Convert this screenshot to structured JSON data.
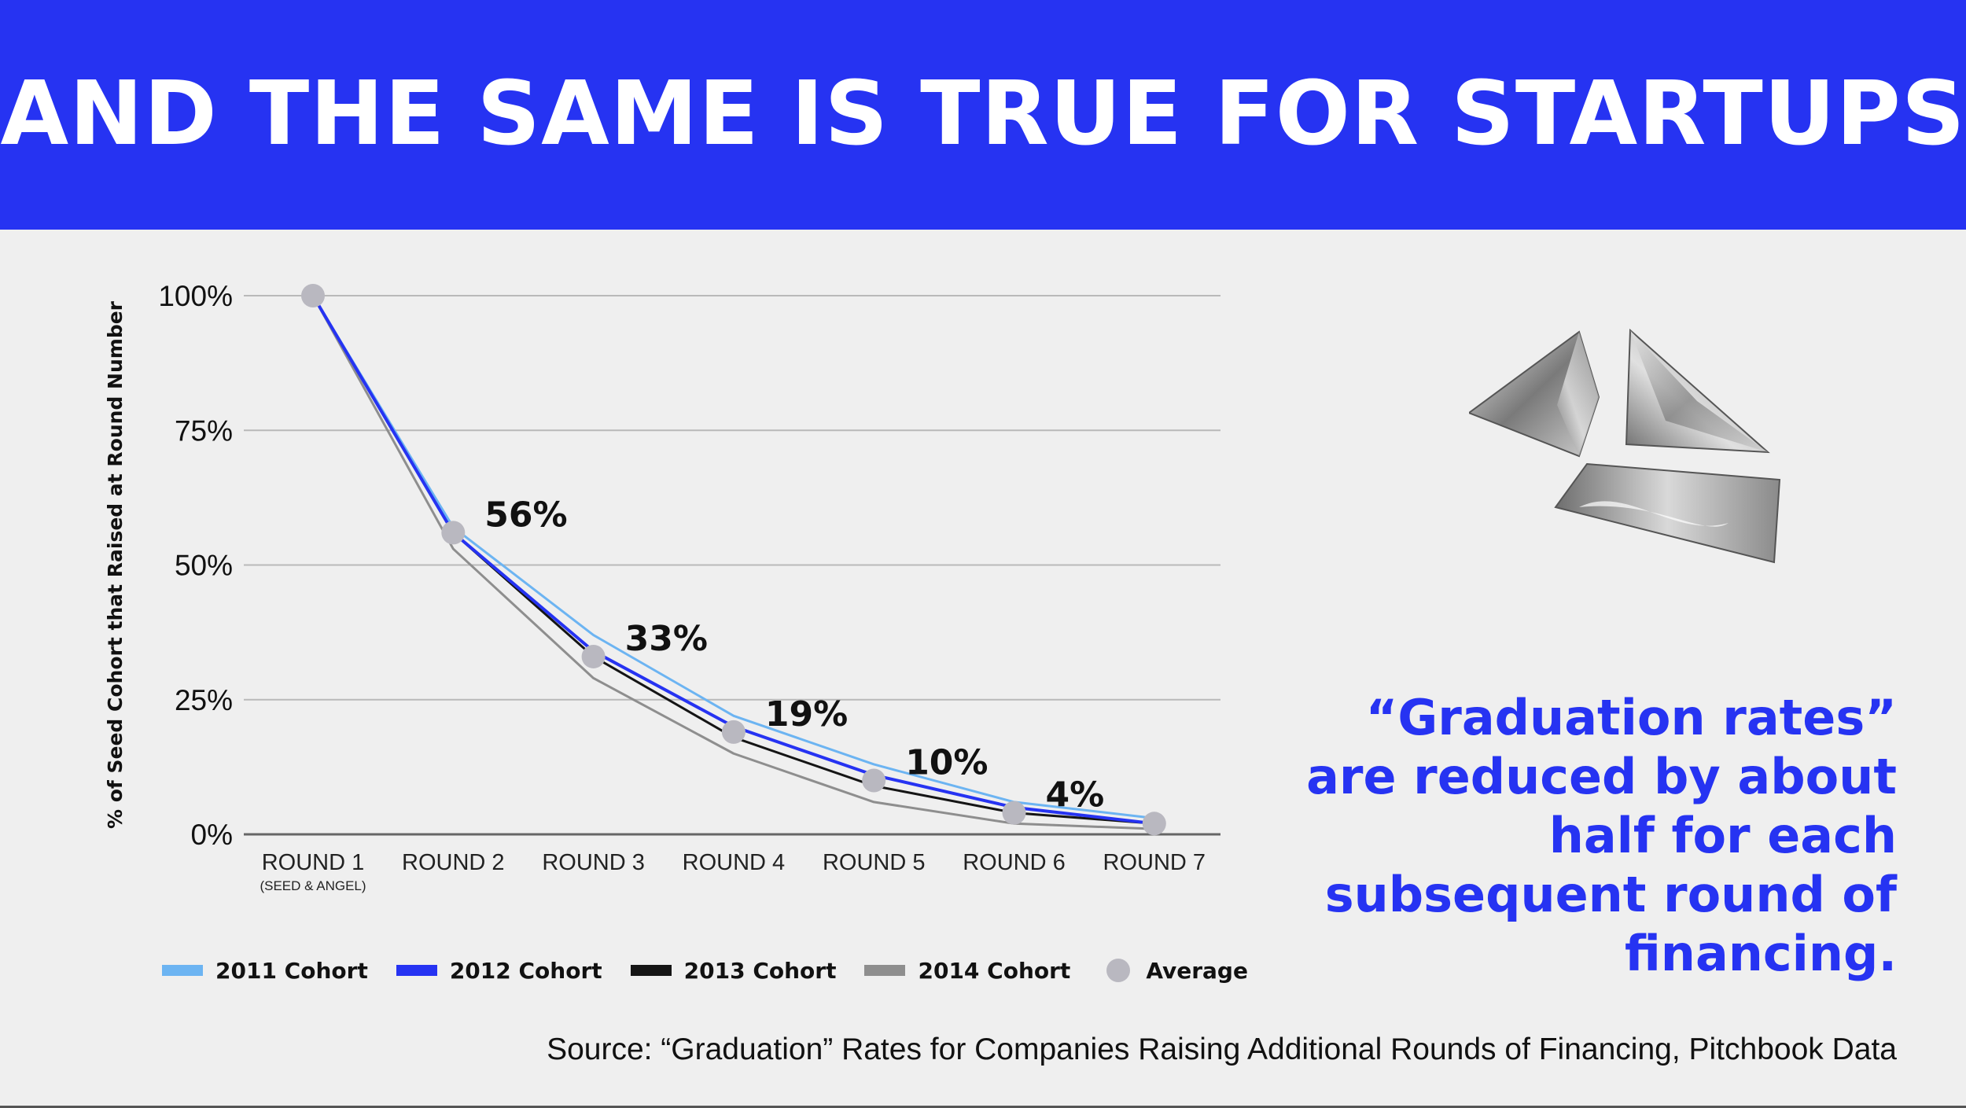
{
  "header": {
    "title": "AND THE SAME IS TRUE FOR STARTUPS"
  },
  "quote": {
    "text": "“Graduation rates” are reduced by about half for each subsequent round of financing."
  },
  "source": {
    "text": "Source: “Graduation” Rates for Companies Raising Additional Rounds of Financing, Pitchbook Data"
  },
  "colors": {
    "header_bg": "#2633f2",
    "accent": "#2633f2",
    "series": [
      "#6cb4f2",
      "#2633f2",
      "#151515",
      "#8e8e8e"
    ],
    "average": "#b9b8c0"
  },
  "chart_data": {
    "type": "line",
    "title": "",
    "xlabel": "",
    "ylabel": "% of Seed Cohort that Raised at Round Number",
    "ylim": [
      0,
      100
    ],
    "yticks": [
      0,
      25,
      50,
      75,
      100
    ],
    "ytick_labels": [
      "0%",
      "25%",
      "50%",
      "75%",
      "100%"
    ],
    "categories": [
      "ROUND 1",
      "ROUND 2",
      "ROUND 3",
      "ROUND 4",
      "ROUND 5",
      "ROUND 6",
      "ROUND 7"
    ],
    "category_sublabels": [
      "(SEED & ANGEL)",
      "",
      "",
      "",
      "",
      "",
      ""
    ],
    "grid": true,
    "legend_position": "bottom",
    "series": [
      {
        "name": "2011 Cohort",
        "values": [
          100,
          57,
          37,
          22,
          13,
          6,
          3
        ]
      },
      {
        "name": "2012 Cohort",
        "values": [
          100,
          56,
          34,
          20,
          11,
          5,
          2
        ]
      },
      {
        "name": "2013 Cohort",
        "values": [
          100,
          56,
          33,
          18,
          9,
          4,
          2
        ]
      },
      {
        "name": "2014 Cohort",
        "values": [
          100,
          53,
          29,
          15,
          6,
          2,
          1
        ]
      },
      {
        "name": "Average",
        "values": [
          100,
          56,
          33,
          19,
          10,
          4,
          2
        ],
        "style": "markers"
      }
    ],
    "annotations": [
      {
        "category": "ROUND 2",
        "value": 56,
        "text": "56%"
      },
      {
        "category": "ROUND 3",
        "value": 33,
        "text": "33%"
      },
      {
        "category": "ROUND 4",
        "value": 19,
        "text": "19%"
      },
      {
        "category": "ROUND 5",
        "value": 10,
        "text": "10%"
      },
      {
        "category": "ROUND 6",
        "value": 4,
        "text": "4%"
      }
    ]
  }
}
